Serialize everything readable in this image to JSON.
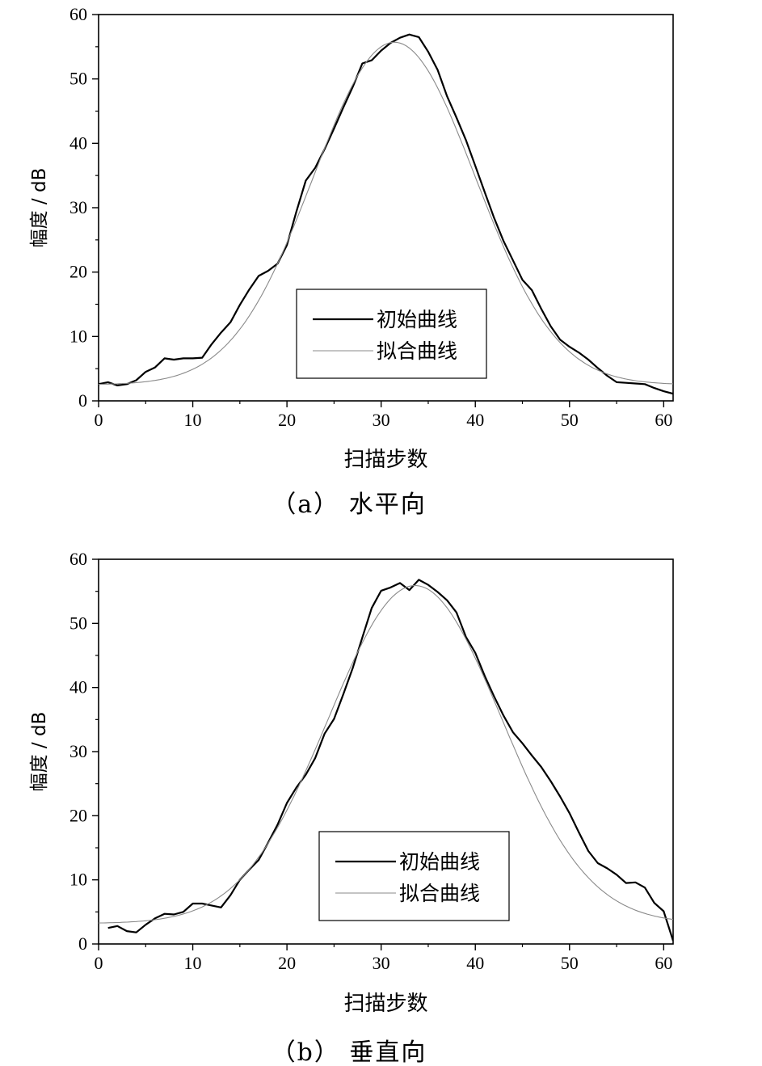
{
  "chart_data": [
    {
      "type": "line",
      "caption": "（a） 水平向",
      "xlabel": "扫描步数",
      "ylabel": "幅度 / dB",
      "xlim": [
        0,
        61
      ],
      "ylim": [
        0,
        60
      ],
      "xticks": [
        0,
        10,
        20,
        30,
        40,
        50,
        60
      ],
      "yticks": [
        0,
        10,
        20,
        30,
        40,
        50,
        60
      ],
      "legend_position": "lower-right",
      "series": [
        {
          "name": "初始曲线",
          "color": "#000000",
          "x": [
            0,
            1,
            2,
            3,
            4,
            5,
            6,
            7,
            8,
            9,
            10,
            11,
            12,
            13,
            14,
            15,
            16,
            17,
            18,
            19,
            20,
            21,
            22,
            23,
            24,
            25,
            26,
            27,
            28,
            29,
            30,
            31,
            32,
            33,
            34,
            35,
            36,
            37,
            38,
            39,
            40,
            41,
            42,
            43,
            44,
            45,
            46,
            47,
            48,
            49,
            50,
            51,
            52,
            53,
            54,
            55,
            56,
            57,
            58,
            59,
            60,
            61
          ],
          "y": [
            2.6,
            2.9,
            2.4,
            2.6,
            3.2,
            4.5,
            5.2,
            6.6,
            6.4,
            6.6,
            6.6,
            6.7,
            8.8,
            10.6,
            12.2,
            14.9,
            17.3,
            19.4,
            20.2,
            21.3,
            24.2,
            29.4,
            34.2,
            36.2,
            39.1,
            42.3,
            45.6,
            48.8,
            52.4,
            52.9,
            54.4,
            55.6,
            56.4,
            56.9,
            56.5,
            54.2,
            51.4,
            47.3,
            44.0,
            40.5,
            36.5,
            32.4,
            28.4,
            24.8,
            21.8,
            18.8,
            17.2,
            14.3,
            11.6,
            9.5,
            8.4,
            7.5,
            6.4,
            5.1,
            3.9,
            2.9,
            2.8,
            2.7,
            2.6,
            2.0,
            1.5,
            1.1
          ]
        },
        {
          "name": "拟合曲线",
          "color": "#8a8a8a",
          "fit": "gaussian",
          "params": {
            "base": 2.5,
            "amplitude": 53.2,
            "center": 31.4,
            "sigma": 8.6
          }
        }
      ]
    },
    {
      "type": "line",
      "caption": "（b） 垂直向",
      "xlabel": "扫描步数",
      "ylabel": "幅度 / dB",
      "xlim": [
        0,
        61
      ],
      "ylim": [
        0,
        60
      ],
      "xticks": [
        0,
        10,
        20,
        30,
        40,
        50,
        60
      ],
      "yticks": [
        0,
        10,
        20,
        30,
        40,
        50,
        60
      ],
      "legend_position": "lower-right",
      "series": [
        {
          "name": "初始曲线",
          "color": "#000000",
          "x": [
            1,
            2,
            3,
            4,
            5,
            6,
            7,
            8,
            9,
            10,
            11,
            12,
            13,
            14,
            15,
            16,
            17,
            18,
            19,
            20,
            21,
            22,
            23,
            24,
            25,
            26,
            27,
            28,
            29,
            30,
            31,
            32,
            33,
            34,
            35,
            36,
            37,
            38,
            39,
            40,
            41,
            42,
            43,
            44,
            45,
            46,
            47,
            48,
            49,
            50,
            51,
            52,
            53,
            54,
            55,
            56,
            57,
            58,
            59,
            60,
            61
          ],
          "y": [
            2.5,
            2.8,
            2.0,
            1.8,
            3.0,
            4.0,
            4.7,
            4.6,
            5.0,
            6.3,
            6.3,
            6.0,
            5.7,
            7.6,
            10.0,
            11.6,
            13.1,
            15.8,
            18.6,
            22.0,
            24.4,
            26.4,
            29.0,
            32.8,
            35.1,
            39.0,
            43.1,
            47.8,
            52.4,
            55.1,
            55.6,
            56.3,
            55.2,
            56.8,
            56.0,
            54.9,
            53.6,
            51.7,
            47.9,
            45.4,
            41.8,
            38.6,
            35.6,
            33.0,
            31.3,
            29.4,
            27.6,
            25.4,
            23.0,
            20.4,
            17.4,
            14.5,
            12.6,
            11.8,
            10.8,
            9.5,
            9.6,
            8.8,
            6.4,
            5.1,
            0.5
          ]
        },
        {
          "name": "拟合曲线",
          "color": "#8a8a8a",
          "fit": "gaussian",
          "params": {
            "base": 3.2,
            "amplitude": 52.7,
            "center": 33.6,
            "sigma": 9.2
          }
        }
      ]
    }
  ]
}
